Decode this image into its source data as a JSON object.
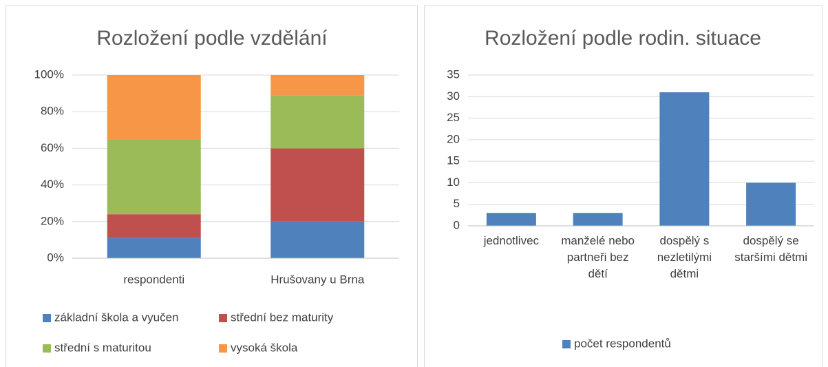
{
  "chart_data": [
    {
      "type": "stacked_bar",
      "title": "Rozložení podle vzdělání",
      "categories": [
        "respondenti",
        "Hrušovany u Brna"
      ],
      "series": [
        {
          "name": "základní škola a vyučen",
          "color": "#4f81bd",
          "values": [
            11,
            20
          ]
        },
        {
          "name": "střední bez maturity",
          "color": "#c0504d",
          "values": [
            13,
            40
          ]
        },
        {
          "name": "střední s maturitou",
          "color": "#9bbb59",
          "values": [
            41,
            29
          ]
        },
        {
          "name": "vysoká škola",
          "color": "#f79646",
          "values": [
            35,
            11
          ]
        }
      ],
      "ylim": [
        0,
        100
      ],
      "yticks": [
        {
          "value": 0,
          "label": "0%"
        },
        {
          "value": 20,
          "label": "20%"
        },
        {
          "value": 40,
          "label": "40%"
        },
        {
          "value": 60,
          "label": "60%"
        },
        {
          "value": 80,
          "label": "80%"
        },
        {
          "value": 100,
          "label": "100%"
        }
      ],
      "grid": true,
      "legend": "bottom"
    },
    {
      "type": "bar",
      "title": "Rozložení podle rodin. situace",
      "categories": [
        "jednotlivec",
        "manželé nebo partneři bez dětí",
        "dospělý s nezletilými dětmi",
        "dospělý se staršími dětmi"
      ],
      "series": [
        {
          "name": "počet respondentů",
          "color": "#4f81bd",
          "values": [
            3,
            3,
            31,
            10
          ]
        }
      ],
      "ylim": [
        0,
        35
      ],
      "yticks": [
        0,
        5,
        10,
        15,
        20,
        25,
        30,
        35
      ],
      "grid": true,
      "legend": "bottom"
    }
  ]
}
